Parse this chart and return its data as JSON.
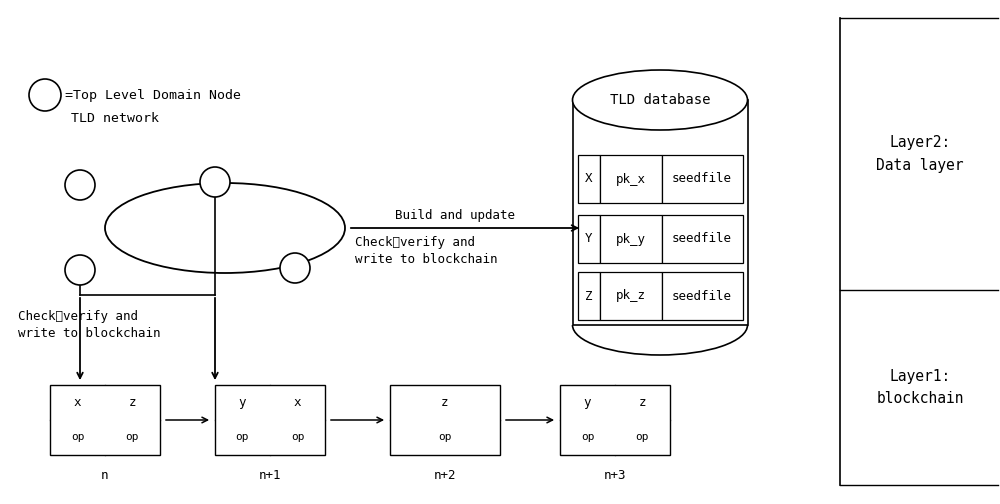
{
  "bg_color": "#ffffff",
  "line_color": "#000000",
  "font_family": "monospace",
  "legend_text1": "=Top Level Domain Node",
  "legend_text2": "TLD network",
  "tld_db_label": "TLD database",
  "db_rows": [
    [
      "X",
      "pk_x",
      "seedfile"
    ],
    [
      "Y",
      "pk_y",
      "seedfile"
    ],
    [
      "Z",
      "pk_z",
      "seedfile"
    ]
  ],
  "arrow1_label": "Build and update",
  "arrow2_label": "Check、verify and\nwrite to blockchain",
  "arrow3_label": "Check、verify and\nwrite to blockchain",
  "layer2_label": "Layer2:\nData layer",
  "layer1_label": "Layer1:\nblockchain",
  "blockchain_blocks": [
    {
      "label": "n",
      "top": [
        "x",
        "z"
      ],
      "bot": [
        "op",
        "op"
      ],
      "two_col": true
    },
    {
      "label": "n+1",
      "top": [
        "y",
        "x"
      ],
      "bot": [
        "op",
        "op"
      ],
      "two_col": true
    },
    {
      "label": "n+2",
      "top": [
        "z",
        ""
      ],
      "bot": [
        "op",
        ""
      ],
      "two_col": false
    },
    {
      "label": "n+3",
      "top": [
        "y",
        "z"
      ],
      "bot": [
        "op",
        "op"
      ],
      "two_col": true
    }
  ]
}
